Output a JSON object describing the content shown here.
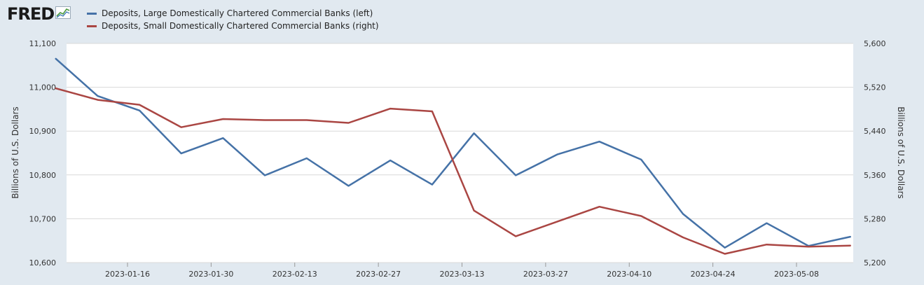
{
  "brand": {
    "logo_text": "FRED",
    "logo_icon": "line-chart-icon"
  },
  "colors": {
    "background": "#e1e9f0",
    "plot_bg": "#ffffff",
    "grid": "#d9d9d9"
  },
  "chart_data": {
    "type": "line",
    "xlabel": "",
    "x_dates": [
      "2023-01-04",
      "2023-01-11",
      "2023-01-18",
      "2023-01-25",
      "2023-02-01",
      "2023-02-08",
      "2023-02-15",
      "2023-02-22",
      "2023-03-01",
      "2023-03-08",
      "2023-03-15",
      "2023-03-22",
      "2023-03-29",
      "2023-04-05",
      "2023-04-12",
      "2023-04-19",
      "2023-04-26",
      "2023-05-03",
      "2023-05-10",
      "2023-05-17"
    ],
    "x_ticks": [
      "2023-01-16",
      "2023-01-30",
      "2023-02-13",
      "2023-02-27",
      "2023-03-13",
      "2023-03-27",
      "2023-04-10",
      "2023-04-24",
      "2023-05-08"
    ],
    "left_axis": {
      "label": "Billions of U.S. Dollars",
      "ylim": [
        10600,
        11100
      ],
      "ticks": [
        "10,600",
        "10,700",
        "10,800",
        "10,900",
        "11,000",
        "11,100"
      ]
    },
    "right_axis": {
      "label": "Billions of U.S. Dollars",
      "ylim": [
        5200,
        5600
      ],
      "ticks": [
        "5,200",
        "5,280",
        "5,360",
        "5,440",
        "5,520",
        "5,600"
      ]
    },
    "grid": true,
    "legend_position": "top-left",
    "series": [
      {
        "name": "Deposits, Large Domestically Chartered Commercial Banks (left)",
        "axis": "left",
        "color": "#4572a7",
        "values": [
          11065,
          10980,
          10947,
          10849,
          10884,
          10799,
          10838,
          10775,
          10833,
          10778,
          10895,
          10799,
          10847,
          10876,
          10835,
          10711,
          10634,
          10690,
          10638,
          10659
        ]
      },
      {
        "name": "Deposits, Small Domestically Chartered Commercial Banks (right)",
        "axis": "right",
        "color": "#aa4643",
        "values": [
          5518,
          5497,
          5488,
          5447,
          5462,
          5460,
          5460,
          5455,
          5481,
          5476,
          5295,
          5248,
          5275,
          5302,
          5285,
          5246,
          5216,
          5233,
          5229,
          5231
        ]
      }
    ]
  }
}
